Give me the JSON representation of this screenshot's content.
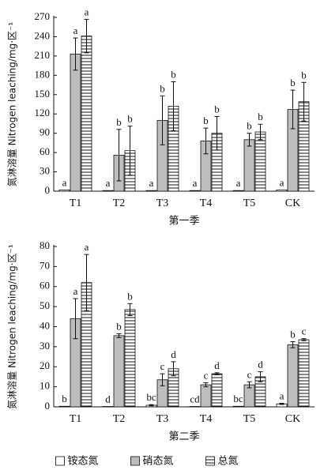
{
  "chart_data": [
    {
      "type": "bar",
      "ylabel": "氮淋溶量 Nitrogen leaching/mg·区⁻¹",
      "xlabel": "第一季",
      "categories": [
        "T1",
        "T2",
        "T3",
        "T4",
        "T5",
        "CK"
      ],
      "ylim": [
        0,
        270
      ],
      "yticks": [
        0,
        30,
        60,
        90,
        120,
        150,
        180,
        210,
        240,
        270
      ],
      "series": [
        {
          "name": "铵态氮",
          "color": "#ffffff",
          "pattern": "none",
          "values": [
            2,
            1,
            1,
            1,
            1,
            2
          ],
          "errors": [
            null,
            null,
            null,
            null,
            null,
            null
          ],
          "letters": [
            "a",
            "a",
            "a",
            "a",
            "a",
            "a"
          ]
        },
        {
          "name": "硝态氮",
          "color": "#bdbdbd",
          "pattern": "none",
          "values": [
            213,
            56,
            110,
            78,
            80,
            127
          ],
          "errors": [
            25,
            40,
            38,
            20,
            10,
            30
          ],
          "letters": [
            "a",
            "b",
            "b",
            "b",
            "b",
            "b"
          ]
        },
        {
          "name": "总氮",
          "color": "#ffffff",
          "pattern": "hlines",
          "values": [
            241,
            63,
            132,
            90,
            92,
            139
          ],
          "errors": [
            26,
            38,
            38,
            26,
            12,
            30
          ],
          "letters": [
            "a",
            "b",
            "b",
            "b",
            "b",
            "b"
          ]
        }
      ]
    },
    {
      "type": "bar",
      "ylabel": "氮淋溶量 Nitrogen leaching/mg·区⁻¹",
      "xlabel": "第二季",
      "categories": [
        "T1",
        "T2",
        "T3",
        "T4",
        "T5",
        "CK"
      ],
      "ylim": [
        0,
        80
      ],
      "yticks": [
        0,
        10,
        20,
        30,
        40,
        50,
        60,
        70,
        80
      ],
      "series": [
        {
          "color": "#ffffff",
          "pattern": "none",
          "values": [
            0.3,
            0.2,
            0.8,
            0.2,
            0.3,
            1.5
          ],
          "errors": [
            null,
            null,
            0.3,
            null,
            null,
            0.3
          ],
          "letters": [
            "b",
            "d",
            "bc",
            "cd",
            "bc",
            "a"
          ]
        },
        {
          "color": "#bdbdbd",
          "pattern": "none",
          "values": [
            44,
            35.5,
            13.5,
            11,
            11,
            31
          ],
          "errors": [
            10,
            1,
            3,
            1,
            1.5,
            1.5
          ],
          "letters": [
            "a",
            "b",
            "c",
            "c",
            "c",
            "b"
          ]
        },
        {
          "color": "#ffffff",
          "pattern": "hlines",
          "values": [
            62,
            48.5,
            19,
            16.5,
            15,
            33.5
          ],
          "errors": [
            14,
            3,
            3.5,
            0.5,
            2.5,
            0.5
          ],
          "letters": [
            "a",
            "b",
            "d",
            "d",
            "d",
            "c"
          ]
        }
      ]
    }
  ]
}
